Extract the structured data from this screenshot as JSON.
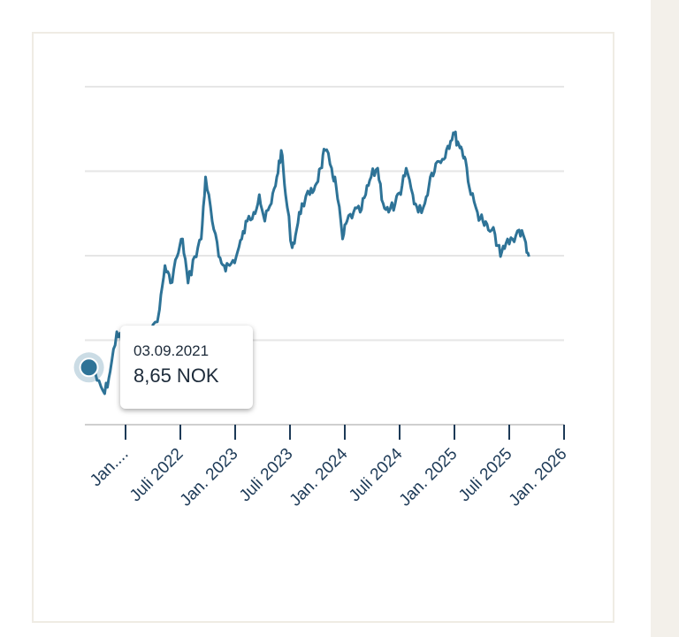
{
  "colors": {
    "line": "#2e7397",
    "grid": "#e6e6e6",
    "axis": "#1d3a57",
    "border": "#efece4",
    "side": "#f3f0ea"
  },
  "tooltip": {
    "date": "03.09.2021",
    "value": "8,65 NOK"
  },
  "chart_data": {
    "type": "line",
    "title": "",
    "xlabel": "",
    "ylabel": "",
    "ylim": [
      5,
      25
    ],
    "yticks": [
      5,
      10,
      15,
      20,
      25
    ],
    "grid": true,
    "xlim": [
      2021.65,
      2026.0
    ],
    "xticks": [
      2022,
      2022.5,
      2023,
      2023.5,
      2024,
      2024.5,
      2025,
      2025.5,
      2026
    ],
    "xtick_labels": [
      "Jan....",
      "Juli 2022",
      "Jan. 2023",
      "Juli 2023",
      "Jan. 2024",
      "Juli 2024",
      "Jan. 2025",
      "Juli 2025",
      "Jan. 2026"
    ],
    "series": [
      {
        "name": "NOK",
        "x": [
          2021.66,
          2021.74,
          2021.81,
          2021.86,
          2021.92,
          2021.98,
          2022.06,
          2022.15,
          2022.23,
          2022.31,
          2022.36,
          2022.41,
          2022.47,
          2022.52,
          2022.57,
          2022.63,
          2022.69,
          2022.73,
          2022.79,
          2022.85,
          2022.9,
          2022.95,
          2023.01,
          2023.06,
          2023.11,
          2023.17,
          2023.22,
          2023.27,
          2023.33,
          2023.38,
          2023.42,
          2023.46,
          2023.52,
          2023.56,
          2023.61,
          2023.68,
          2023.73,
          2023.78,
          2023.82,
          2023.88,
          2023.92,
          2023.98,
          2024.02,
          2024.08,
          2024.14,
          2024.19,
          2024.24,
          2024.3,
          2024.35,
          2024.4,
          2024.46,
          2024.51,
          2024.56,
          2024.62,
          2024.67,
          2024.73,
          2024.78,
          2024.83,
          2024.89,
          2024.94,
          2024.99,
          2025.03,
          2025.07,
          2025.1,
          2025.15,
          2025.21,
          2025.26,
          2025.31,
          2025.37,
          2025.42,
          2025.47,
          2025.53,
          2025.59,
          2025.64,
          2025.68
        ],
        "y": [
          8.65,
          7.62,
          6.83,
          8.14,
          10.5,
          9.71,
          9.19,
          9.71,
          10.24,
          11.81,
          14.42,
          13.38,
          14.95,
          15.99,
          13.38,
          14.95,
          15.99,
          19.66,
          17.04,
          14.95,
          14.42,
          14.42,
          14.95,
          15.99,
          17.04,
          17.57,
          18.61,
          17.04,
          18.09,
          19.66,
          21.23,
          18.61,
          15.47,
          16.52,
          18.09,
          18.61,
          19.14,
          20.18,
          21.23,
          20.18,
          19.14,
          15.99,
          17.04,
          17.57,
          17.57,
          18.61,
          19.66,
          20.18,
          18.09,
          17.57,
          18.09,
          18.61,
          20.18,
          18.61,
          17.57,
          18.09,
          19.66,
          20.45,
          20.71,
          21.49,
          22.28,
          21.75,
          21.23,
          20.71,
          18.61,
          17.57,
          17.04,
          16.52,
          16.26,
          14.95,
          15.73,
          15.99,
          16.52,
          15.99,
          14.95
        ]
      }
    ],
    "highlighted_point": {
      "x": 2021.67,
      "y": 8.65
    }
  }
}
